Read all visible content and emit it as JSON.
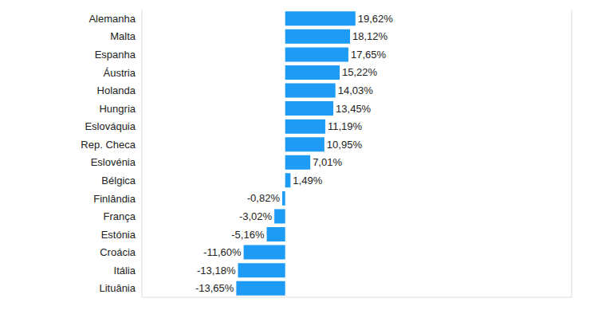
{
  "chart_data": {
    "type": "bar",
    "orientation": "horizontal",
    "categories": [
      "Alemanha",
      "Malta",
      "Espanha",
      "Áustria",
      "Holanda",
      "Hungria",
      "Eslováquia",
      "Rep. Checa",
      "Eslovénia",
      "Bélgica",
      "Finlândia",
      "França",
      "Estónia",
      "Croácia",
      "Itália",
      "Lituânia"
    ],
    "values": [
      19.62,
      18.12,
      17.65,
      15.22,
      14.03,
      13.45,
      11.19,
      10.95,
      7.01,
      1.49,
      -0.82,
      -3.02,
      -5.16,
      -11.6,
      -13.18,
      -13.65
    ],
    "value_labels": [
      "19,62%",
      "18,12%",
      "17,65%",
      "15,22%",
      "14,03%",
      "13,45%",
      "11,19%",
      "10,95%",
      "7,01%",
      "1,49%",
      "-0,82%",
      "-3,02%",
      "-5,16%",
      "-11,60%",
      "-13,18%",
      "-13,65%"
    ],
    "color": "#1e9bf5",
    "xlim": [
      -40,
      80
    ],
    "xticks": [
      -40,
      -20,
      0,
      20,
      40,
      60,
      80
    ],
    "grid": true,
    "data_labels": true,
    "tick_labels": "y"
  }
}
